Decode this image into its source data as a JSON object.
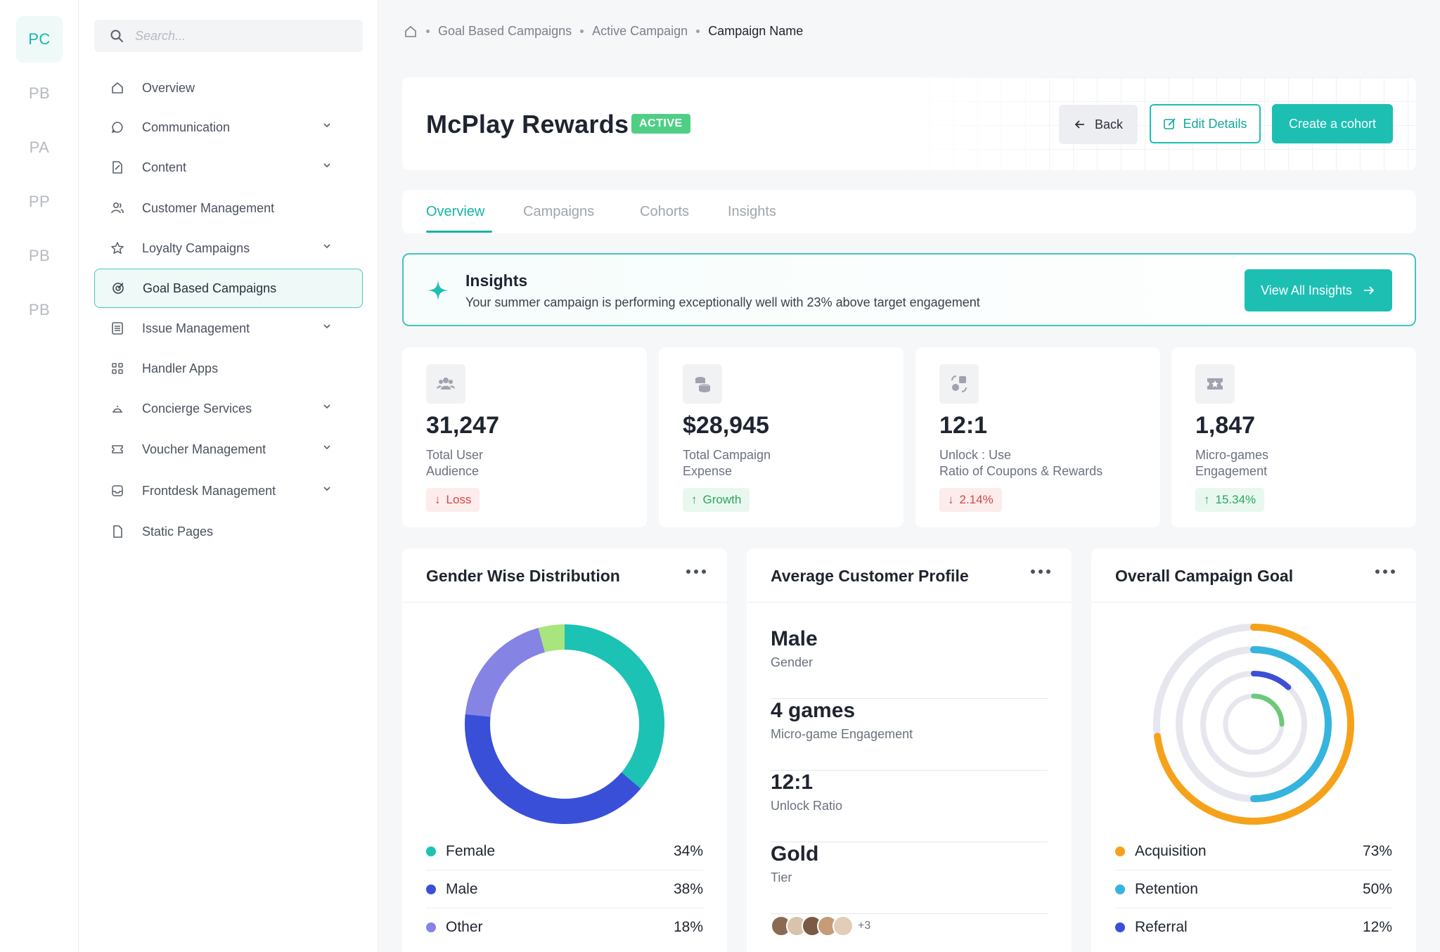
{
  "rail": {
    "items": [
      "PC",
      "PB",
      "PA",
      "PP",
      "PB",
      "PB"
    ]
  },
  "search": {
    "placeholder": "Search..."
  },
  "sidebar": {
    "items": [
      {
        "label": "Overview"
      },
      {
        "label": "Communication"
      },
      {
        "label": "Content"
      },
      {
        "label": "Customer Management"
      },
      {
        "label": "Loyalty Campaigns"
      },
      {
        "label": "Goal Based Campaigns"
      },
      {
        "label": "Issue Management"
      },
      {
        "label": "Handler Apps"
      },
      {
        "label": "Concierge Services"
      },
      {
        "label": "Voucher Management"
      },
      {
        "label": "Frontdesk Management"
      },
      {
        "label": "Static Pages"
      }
    ]
  },
  "breadcrumb": {
    "items": [
      "Goal Based Campaigns",
      "Active Campaign",
      "Campaign Name"
    ]
  },
  "header": {
    "title": "McPlay Rewards",
    "status": "ACTIVE",
    "back_label": "Back",
    "edit_label": "Edit Details",
    "create_label": "Create a cohort"
  },
  "tabs": [
    {
      "label": "Overview"
    },
    {
      "label": "Campaigns"
    },
    {
      "label": "Cohorts"
    },
    {
      "label": "Insights"
    }
  ],
  "insight": {
    "title": "Insights",
    "text": "Your summer campaign is performing exceptionally well with 23% above target engagement",
    "button": "View All Insights"
  },
  "stats": [
    {
      "value": "31,247",
      "label1": "Total User",
      "label2": "Audience",
      "pill": "Loss"
    },
    {
      "value": "$28,945",
      "label1": "Total Campaign",
      "label2": "Expense",
      "pill": "Growth"
    },
    {
      "value": "12:1",
      "label1": "Unlock : Use",
      "label2": "Ratio of Coupons & Rewards",
      "pill": "2.14%"
    },
    {
      "value": "1,847",
      "label1": "Micro-games",
      "label2": "Engagement",
      "pill": "15.34%"
    }
  ],
  "gender": {
    "title": "Gender Wise Distribution",
    "items": [
      {
        "label": "Female",
        "pct": "34%",
        "value": 34,
        "color": "#1cc2b3"
      },
      {
        "label": "Male",
        "pct": "38%",
        "value": 38,
        "color": "#3a4fd8"
      },
      {
        "label": "Other",
        "pct": "18%",
        "value": 18,
        "color": "#8583e4"
      },
      {
        "value": 4,
        "color": "#a8e57e"
      }
    ]
  },
  "profile": {
    "title": "Average Customer Profile",
    "rows": [
      {
        "value": "Male",
        "key": "Gender"
      },
      {
        "value": "4 games",
        "key": "Micro-game Engagement"
      },
      {
        "value": "12:1",
        "key": "Unlock Ratio"
      },
      {
        "value": "Gold",
        "key": "Tier"
      }
    ],
    "more_avatars": "+3"
  },
  "goal": {
    "title": "Overall Campaign Goal",
    "items": [
      {
        "label": "Acquisition",
        "pct": "73%",
        "value": 73,
        "color": "#f5a21a"
      },
      {
        "label": "Retention",
        "pct": "50%",
        "value": 50,
        "color": "#35b4de"
      },
      {
        "label": "Referral",
        "pct": "12%",
        "value": 12,
        "color": "#3d4fd6"
      },
      {
        "value": 25,
        "color": "#6cc97a"
      }
    ]
  }
}
